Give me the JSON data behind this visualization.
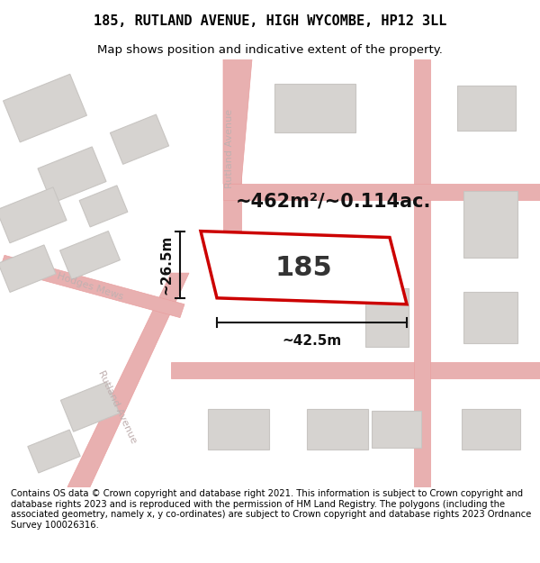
{
  "title": "185, RUTLAND AVENUE, HIGH WYCOMBE, HP12 3LL",
  "subtitle": "Map shows position and indicative extent of the property.",
  "footer": "Contains OS data © Crown copyright and database right 2021. This information is subject to Crown copyright and database rights 2023 and is reproduced with the permission of HM Land Registry. The polygons (including the associated geometry, namely x, y co-ordinates) are subject to Crown copyright and database rights 2023 Ordnance Survey 100026316.",
  "map_bg": "#efedec",
  "area_label": "~462m²/~0.114ac.",
  "number_label": "185",
  "width_label": "~42.5m",
  "height_label": "~26.5m",
  "road_color": "#e8b0b0",
  "road_edge": "#e8a0a0",
  "building_color": "#d6d3d0",
  "building_edge": "#c8c5c2",
  "plot_edge_color": "#cc0000",
  "plot_fill": "#ffffff",
  "dim_line_color": "#111111",
  "title_fontsize": 11,
  "subtitle_fontsize": 9.5,
  "footer_fontsize": 7.2,
  "street_label_color": "#c0b0b0"
}
